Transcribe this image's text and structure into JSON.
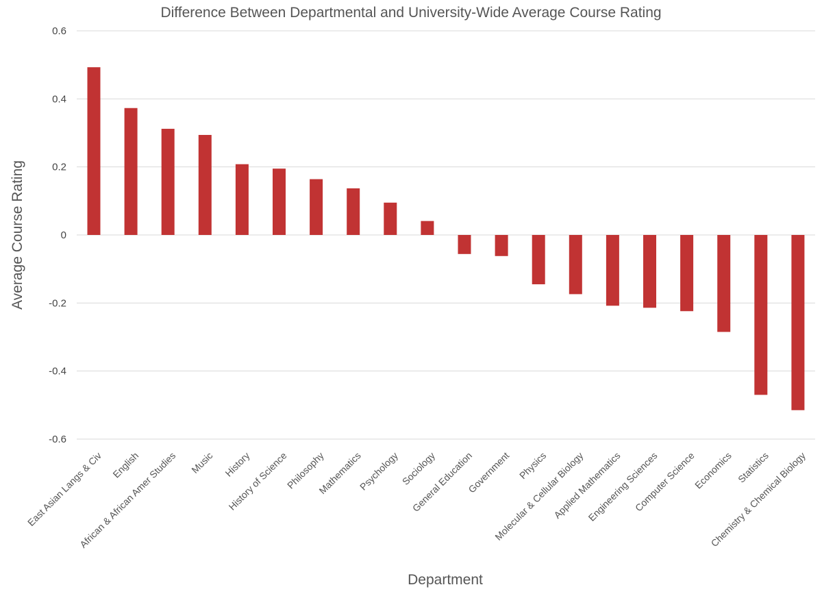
{
  "chart_data": {
    "type": "bar",
    "title": "Difference Between Departmental and University-Wide Average Course Rating",
    "xlabel": "Department",
    "ylabel": "Average Course Rating",
    "ylim": [
      -0.6,
      0.6
    ],
    "yticks": [
      "0.6",
      "0.4",
      "0.2",
      "0",
      "-0.2",
      "-0.4",
      "-0.6"
    ],
    "ytick_values": [
      0.6,
      0.4,
      0.2,
      0,
      -0.2,
      -0.4,
      -0.6
    ],
    "grid": true,
    "bar_color": "#c13333",
    "categories": [
      "East Asian Langs & Civ",
      "English",
      "African & African Amer Studies",
      "Music",
      "History",
      "History of Science",
      "Philosophy",
      "Mathematics",
      "Psychology",
      "Sociology",
      "General Education",
      "Government",
      "Physics",
      "Molecular & Cellular Biology",
      "Applied Mathematics",
      "Engineering Sciences",
      "Computer Science",
      "Economics",
      "Statistics",
      "Chemistry & Chemical Biology"
    ],
    "values": [
      0.493,
      0.373,
      0.312,
      0.294,
      0.208,
      0.195,
      0.164,
      0.137,
      0.095,
      0.041,
      -0.056,
      -0.062,
      -0.145,
      -0.174,
      -0.208,
      -0.214,
      -0.224,
      -0.285,
      -0.47,
      -0.515
    ]
  }
}
